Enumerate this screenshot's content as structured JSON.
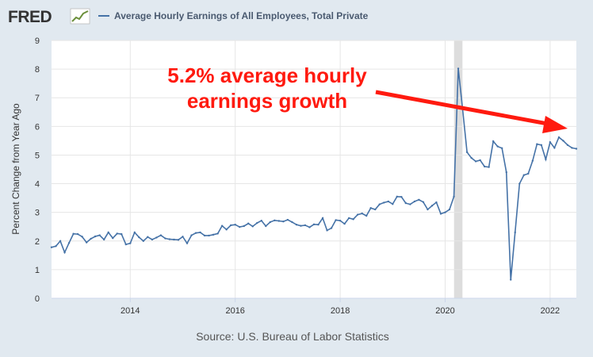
{
  "header": {
    "logo_text": "FRED",
    "legend_label": "Average Hourly Earnings of All Employees, Total Private"
  },
  "source": "Source: U.S. Bureau of Labor Statistics",
  "annotation": {
    "line1": "5.2% average hourly",
    "line2": "earnings growth",
    "color": "#ff1a0f"
  },
  "colors": {
    "series": "#4572a7",
    "background": "#e1e9f0",
    "plot": "#ffffff",
    "recession": "#dddddd"
  },
  "chart_data": {
    "type": "line",
    "title": "",
    "xlabel": "",
    "ylabel": "Percent Change from Year Ago",
    "xlim": [
      2012.5,
      2022.5
    ],
    "ylim": [
      0,
      9
    ],
    "yticks": [
      "0",
      "1",
      "2",
      "3",
      "4",
      "5",
      "6",
      "7",
      "8",
      "9"
    ],
    "xticks": [
      "2014",
      "2016",
      "2018",
      "2020",
      "2022"
    ],
    "grid": true,
    "recession": [
      2020.17,
      2020.33
    ],
    "series": [
      {
        "name": "Average Hourly Earnings of All Employees, Total Private",
        "x": [
          2012.5,
          2012.583,
          2012.667,
          2012.75,
          2012.833,
          2012.917,
          2013.0,
          2013.083,
          2013.167,
          2013.25,
          2013.333,
          2013.417,
          2013.5,
          2013.583,
          2013.667,
          2013.75,
          2013.833,
          2013.917,
          2014.0,
          2014.083,
          2014.167,
          2014.25,
          2014.333,
          2014.417,
          2014.5,
          2014.583,
          2014.667,
          2014.75,
          2014.833,
          2014.917,
          2015.0,
          2015.083,
          2015.167,
          2015.25,
          2015.333,
          2015.417,
          2015.5,
          2015.583,
          2015.667,
          2015.75,
          2015.833,
          2015.917,
          2016.0,
          2016.083,
          2016.167,
          2016.25,
          2016.333,
          2016.417,
          2016.5,
          2016.583,
          2016.667,
          2016.75,
          2016.833,
          2016.917,
          2017.0,
          2017.083,
          2017.167,
          2017.25,
          2017.333,
          2017.417,
          2017.5,
          2017.583,
          2017.667,
          2017.75,
          2017.833,
          2017.917,
          2018.0,
          2018.083,
          2018.167,
          2018.25,
          2018.333,
          2018.417,
          2018.5,
          2018.583,
          2018.667,
          2018.75,
          2018.833,
          2018.917,
          2019.0,
          2019.083,
          2019.167,
          2019.25,
          2019.333,
          2019.417,
          2019.5,
          2019.583,
          2019.667,
          2019.75,
          2019.833,
          2019.917,
          2020.0,
          2020.083,
          2020.167,
          2020.25,
          2020.333,
          2020.417,
          2020.5,
          2020.583,
          2020.667,
          2020.75,
          2020.833,
          2020.917,
          2021.0,
          2021.083,
          2021.167,
          2021.25,
          2021.333,
          2021.417,
          2021.5,
          2021.583,
          2021.667,
          2021.75,
          2021.833,
          2021.917,
          2022.0,
          2022.083,
          2022.167,
          2022.25,
          2022.333,
          2022.417,
          2022.5
        ],
        "values": [
          1.78,
          1.82,
          2.0,
          1.6,
          1.93,
          2.25,
          2.24,
          2.15,
          1.95,
          2.08,
          2.16,
          2.2,
          2.05,
          2.3,
          2.1,
          2.26,
          2.24,
          1.88,
          1.92,
          2.3,
          2.13,
          2.0,
          2.14,
          2.05,
          2.12,
          2.2,
          2.09,
          2.06,
          2.05,
          2.04,
          2.15,
          1.92,
          2.2,
          2.28,
          2.3,
          2.19,
          2.19,
          2.22,
          2.26,
          2.53,
          2.4,
          2.55,
          2.57,
          2.49,
          2.52,
          2.61,
          2.51,
          2.63,
          2.71,
          2.52,
          2.66,
          2.72,
          2.7,
          2.68,
          2.74,
          2.66,
          2.57,
          2.53,
          2.55,
          2.48,
          2.58,
          2.57,
          2.8,
          2.37,
          2.45,
          2.73,
          2.71,
          2.6,
          2.8,
          2.76,
          2.92,
          2.96,
          2.88,
          3.15,
          3.1,
          3.28,
          3.34,
          3.38,
          3.29,
          3.55,
          3.54,
          3.32,
          3.28,
          3.38,
          3.44,
          3.36,
          3.1,
          3.23,
          3.35,
          2.95,
          3.0,
          3.1,
          3.55,
          8.02,
          6.6,
          5.1,
          4.9,
          4.78,
          4.82,
          4.6,
          4.58,
          5.48,
          5.3,
          5.24,
          4.4,
          0.65,
          2.3,
          4.0,
          4.3,
          4.35,
          4.8,
          5.38,
          5.35,
          4.85,
          5.45,
          5.25,
          5.62,
          5.5,
          5.35,
          5.25,
          5.22
        ]
      }
    ]
  }
}
